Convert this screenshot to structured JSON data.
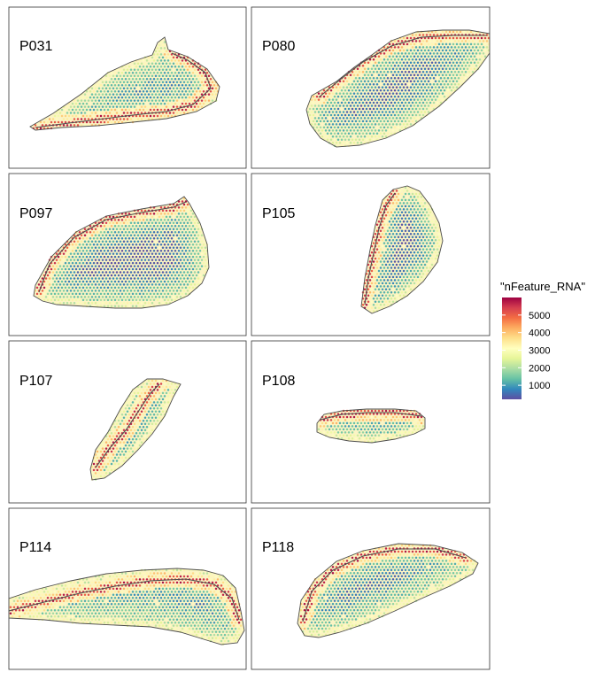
{
  "chart_data": {
    "type": "spatial-feature-plot",
    "panels": [
      {
        "label": "P031"
      },
      {
        "label": "P080"
      },
      {
        "label": "P097"
      },
      {
        "label": "P105"
      },
      {
        "label": "P107"
      },
      {
        "label": "P108"
      },
      {
        "label": "P114"
      },
      {
        "label": "P118"
      }
    ],
    "legend": {
      "title": "\"nFeature_RNA\"",
      "ticks": [
        1000,
        2000,
        3000,
        4000,
        5000
      ],
      "range": [
        200,
        6000
      ],
      "colors": [
        "#5E4FA2",
        "#3288BD",
        "#66C2A5",
        "#ABDDA4",
        "#E6F598",
        "#FFFFBF",
        "#FEE08B",
        "#FDAE61",
        "#F46D43",
        "#D53E4F",
        "#9E0142"
      ]
    },
    "colors": {
      "tissue_fill": "#fbf4c4",
      "outline": "#4d4d4d",
      "frame": "#333333"
    }
  }
}
